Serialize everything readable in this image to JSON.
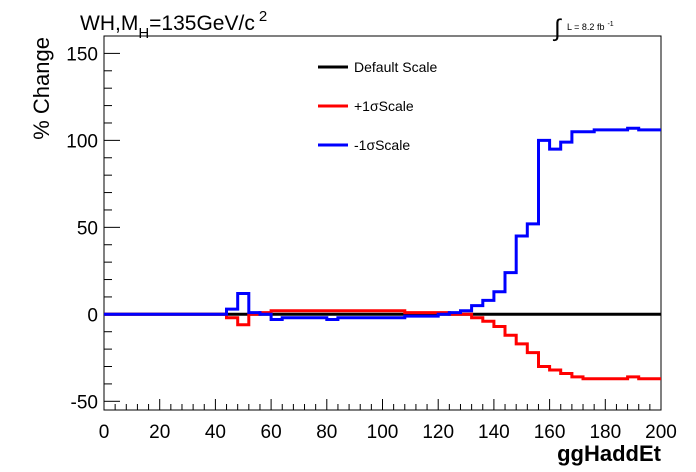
{
  "chart_data": {
    "type": "line",
    "title": {
      "main": "WH,M",
      "subscript": "H",
      "rest": "=135GeV/c",
      "superscript": "2"
    },
    "luminosity": {
      "integral": "∫",
      "text": "L = 8.2 fb",
      "superscript": "-1"
    },
    "xlabel": "ggHaddEt",
    "ylabel": "% Change",
    "xlim": [
      0,
      200
    ],
    "ylim": [
      -55,
      160
    ],
    "x_ticks": [
      0,
      20,
      40,
      60,
      80,
      100,
      120,
      140,
      160,
      180,
      200
    ],
    "y_ticks": [
      -50,
      0,
      50,
      100,
      150
    ],
    "bin_edges": [
      0,
      4,
      8,
      12,
      16,
      20,
      24,
      28,
      32,
      36,
      40,
      44,
      48,
      52,
      56,
      60,
      64,
      68,
      72,
      76,
      80,
      84,
      88,
      92,
      96,
      100,
      104,
      108,
      112,
      116,
      120,
      124,
      128,
      132,
      136,
      140,
      144,
      148,
      152,
      156,
      160,
      164,
      168,
      172,
      176,
      180,
      184,
      188,
      192,
      196,
      200
    ],
    "legend_position": "top-center",
    "series": [
      {
        "name": "Default Scale",
        "color": "#000000",
        "values": [
          0,
          0,
          0,
          0,
          0,
          0,
          0,
          0,
          0,
          0,
          0,
          0,
          0,
          0,
          0,
          0,
          0,
          0,
          0,
          0,
          0,
          0,
          0,
          0,
          0,
          0,
          0,
          0,
          0,
          0,
          0,
          0,
          0,
          0,
          0,
          0,
          0,
          0,
          0,
          0,
          0,
          0,
          0,
          0,
          0,
          0,
          0,
          0,
          0,
          0
        ]
      },
      {
        "name": "+1σScale",
        "color": "#ff0000",
        "values": [
          0,
          0,
          0,
          0,
          0,
          0,
          0,
          0,
          0,
          0,
          0,
          -2,
          -6,
          0,
          1,
          2,
          2,
          2,
          2,
          2,
          2,
          2,
          2,
          2,
          2,
          2,
          2,
          1,
          1,
          1,
          1,
          0,
          0,
          -2,
          -4,
          -7,
          -12,
          -17,
          -22,
          -30,
          -32,
          -34,
          -36,
          -37,
          -37,
          -37,
          -37,
          -36,
          -37,
          -37
        ]
      },
      {
        "name": "-1σScale",
        "color": "#0000ff",
        "values": [
          0,
          0,
          0,
          0,
          0,
          0,
          0,
          0,
          0,
          0,
          0,
          3,
          12,
          1,
          0,
          -3,
          -2,
          -2,
          -2,
          -2,
          -3,
          -2,
          -2,
          -2,
          -2,
          -2,
          -2,
          -1,
          -1,
          -1,
          0,
          1,
          2,
          5,
          8,
          13,
          24,
          45,
          52,
          100,
          95,
          99,
          105,
          105,
          106,
          106,
          106,
          107,
          106,
          106
        ]
      }
    ]
  }
}
